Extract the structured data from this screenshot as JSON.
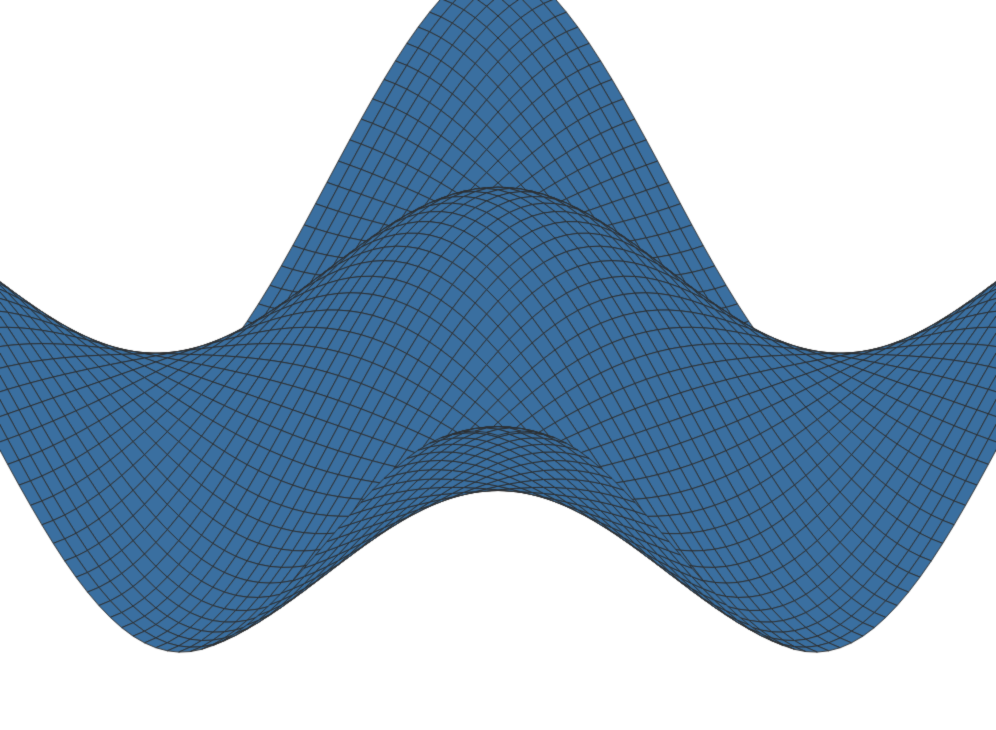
{
  "colors": {
    "surface_fill": "#3a6fa0",
    "mesh_line": "#2b2b2b",
    "background": "#ffffff"
  },
  "chart_data": {
    "type": "surface",
    "title": "",
    "xlabel": "",
    "ylabel": "",
    "zlabel": "",
    "axes_visible": false,
    "grid": false,
    "series": [
      {
        "function": "cos(x) * cos(y)",
        "x_range": [
          -3.14159,
          3.14159
        ],
        "y_range": [
          -3.14159,
          3.14159
        ],
        "z_range": [
          -1,
          1
        ],
        "mesh_resolution": 60
      }
    ],
    "view": {
      "elevation_deg": 30,
      "azimuth_deg": 45
    }
  }
}
